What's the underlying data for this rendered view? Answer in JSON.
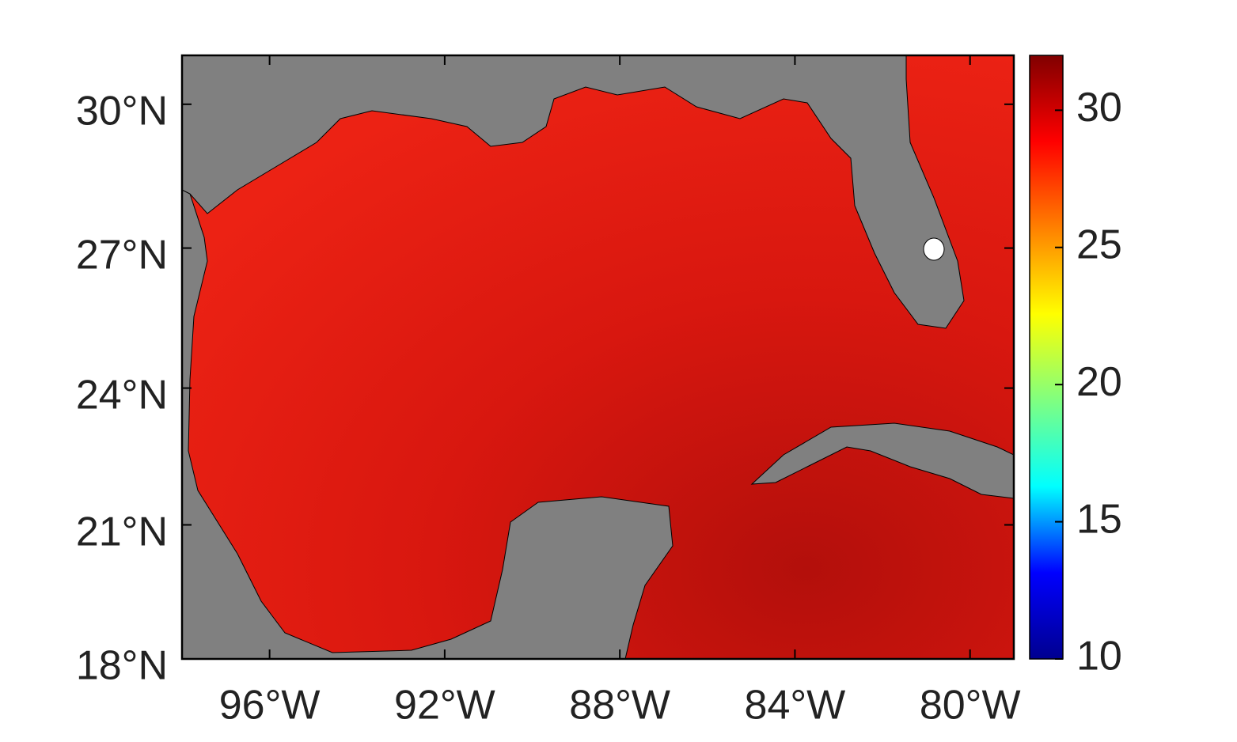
{
  "map": {
    "lonlim": [
      -98,
      -79
    ],
    "latlim": [
      18,
      31
    ],
    "lon_ticks": [
      {
        "value": -96,
        "label": "96°W"
      },
      {
        "value": -92,
        "label": "92°W"
      },
      {
        "value": -88,
        "label": "88°W"
      },
      {
        "value": -84,
        "label": "84°W"
      },
      {
        "value": -80,
        "label": "80°W"
      }
    ],
    "lat_ticks": [
      {
        "value": 18,
        "label": "18°N"
      },
      {
        "value": 21,
        "label": "21°N"
      },
      {
        "value": 24,
        "label": "24°N"
      },
      {
        "value": 27,
        "label": "27°N"
      },
      {
        "value": 30,
        "label": "30°N"
      }
    ],
    "colorbar": {
      "lim": [
        10,
        32
      ],
      "ticks": [
        10,
        15,
        20,
        25,
        30
      ],
      "colors": [
        "#00008f",
        "#0000ff",
        "#00ffff",
        "#80ff80",
        "#ffff00",
        "#ff8000",
        "#ff0000",
        "#800000"
      ]
    }
  }
}
